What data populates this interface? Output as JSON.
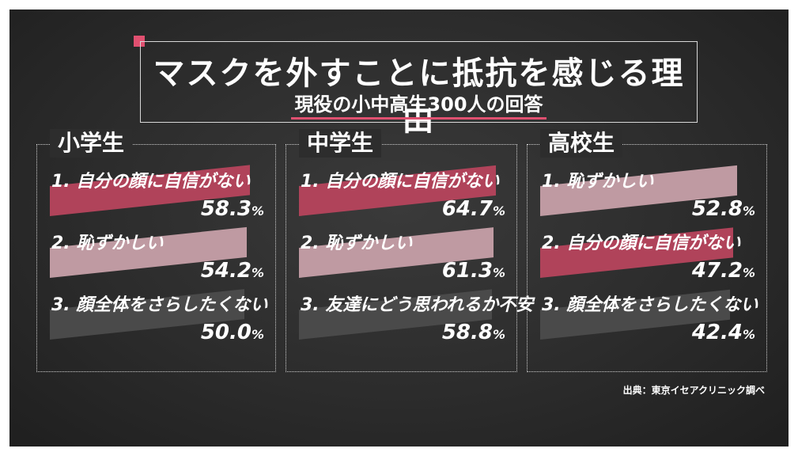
{
  "header": {
    "title": "マスクを外すことに抵抗を感じる理由",
    "subtitle": "現役の小中高生300人の回答"
  },
  "colors": {
    "rank1": "#b0435a",
    "rank2": "#bf9aa2",
    "rank3": "#4a4a4a",
    "accent": "#e05070"
  },
  "panels": [
    {
      "title": "小学生",
      "items": [
        {
          "label": "1. 自分の顔に自信がない",
          "value": "58.3",
          "unit": "%",
          "percent": 58.3
        },
        {
          "label": "2. 恥ずかしい",
          "value": "54.2",
          "unit": "%",
          "percent": 54.2
        },
        {
          "label": "3. 顔全体をさらしたくない",
          "value": "50.0",
          "unit": "%",
          "percent": 50.0
        }
      ]
    },
    {
      "title": "中学生",
      "items": [
        {
          "label": "1. 自分の顔に自信がない",
          "value": "64.7",
          "unit": "%",
          "percent": 64.7
        },
        {
          "label": "2. 恥ずかしい",
          "value": "61.3",
          "unit": "%",
          "percent": 61.3
        },
        {
          "label": "3. 友達にどう思われるか不安",
          "value": "58.8",
          "unit": "%",
          "percent": 58.8
        }
      ]
    },
    {
      "title": "高校生",
      "items": [
        {
          "label": "1. 恥ずかしい",
          "value": "52.8",
          "unit": "%",
          "percent": 52.8
        },
        {
          "label": "2. 自分の顔に自信がない",
          "value": "47.2",
          "unit": "%",
          "percent": 47.2
        },
        {
          "label": "3. 顔全体をさらしたくない",
          "value": "42.4",
          "unit": "%",
          "percent": 42.4
        }
      ]
    }
  ],
  "source": "出典：東京イセアクリニック調べ"
}
